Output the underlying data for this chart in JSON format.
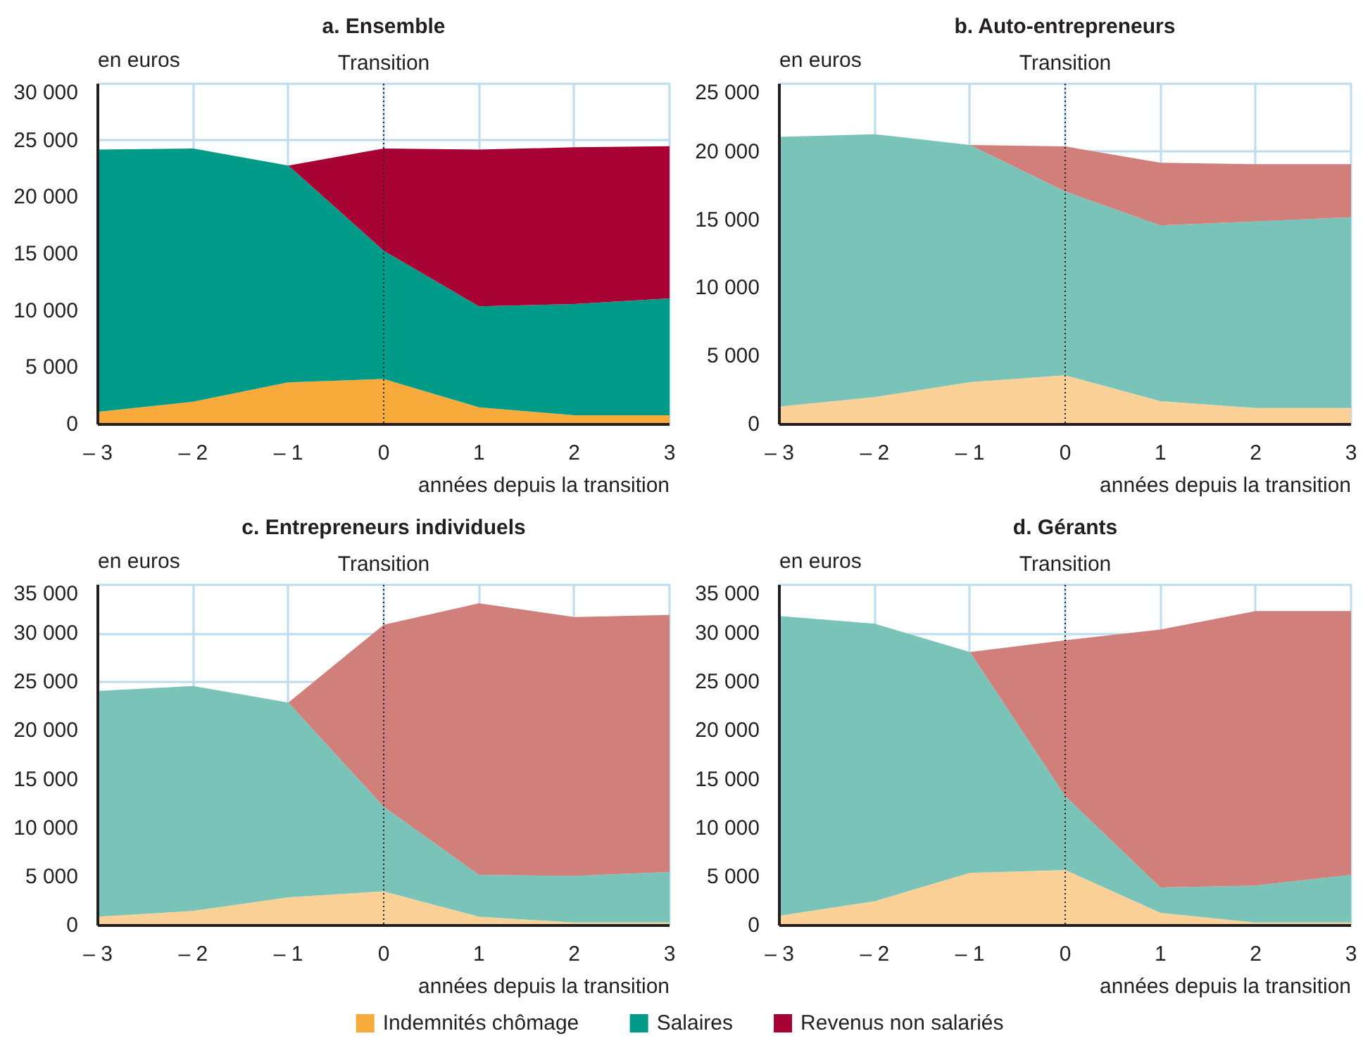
{
  "chart_data": [
    {
      "type": "area",
      "title": "a. Ensemble",
      "ylabel": "en euros",
      "xlabel": "années depuis la transition",
      "x": [
        -3,
        -2,
        -1,
        0,
        1,
        2,
        3
      ],
      "stacked": true,
      "series": [
        {
          "name": "Indemnités chômage",
          "color": "#f8ab3b",
          "values": [
            1100,
            2000,
            3700,
            4000,
            1500,
            800,
            800
          ]
        },
        {
          "name": "Salaires",
          "color": "#009a89",
          "values": [
            23100,
            22300,
            19100,
            11300,
            8900,
            9800,
            10300
          ]
        },
        {
          "name": "Revenus non salariés",
          "color": "#a70233",
          "values": [
            null,
            null,
            0,
            9000,
            13800,
            13800,
            13400
          ]
        }
      ],
      "xlim": [
        -3,
        3
      ],
      "ylim": [
        0,
        30000
      ],
      "xticks": [
        {
          "value": -3,
          "label": "– 3"
        },
        {
          "value": -2,
          "label": "– 2"
        },
        {
          "value": -1,
          "label": "– 1"
        },
        0,
        1,
        2,
        3
      ],
      "yticks": [
        0,
        {
          "value": 5000,
          "label": "5 000"
        },
        {
          "value": 10000,
          "label": "10 000"
        },
        {
          "value": 15000,
          "label": "15 000"
        },
        {
          "value": 20000,
          "label": "20 000"
        },
        {
          "value": 25000,
          "label": "25 000"
        },
        {
          "value": 30000,
          "label": "30 000"
        }
      ],
      "ref_lines": [
        {
          "axis": "x",
          "value": 0,
          "label": "Transition",
          "line_style": "dotted",
          "color": "#231f20"
        }
      ],
      "grid": true,
      "legend": "bottom"
    },
    {
      "type": "area",
      "title": "b. Auto-entrepreneurs",
      "ylabel": "en euros",
      "xlabel": "années depuis la transition",
      "x": [
        -3,
        -2,
        -1,
        0,
        1,
        2,
        3
      ],
      "stacked": true,
      "series": [
        {
          "color": "#fcd197",
          "values": [
            1300,
            2000,
            3100,
            3600,
            1700,
            1200,
            1200
          ]
        },
        {
          "color": "#79c3b8",
          "values": [
            19800,
            19300,
            17400,
            13500,
            12900,
            13700,
            14000
          ]
        },
        {
          "color": "#d07f7b",
          "values": [
            null,
            null,
            0,
            3300,
            4600,
            4200,
            3900
          ]
        }
      ],
      "xlim": [
        -3,
        3
      ],
      "ylim": [
        0,
        25000
      ],
      "xticks": [
        {
          "value": -3,
          "label": "– 3"
        },
        {
          "value": -2,
          "label": "– 2"
        },
        {
          "value": -1,
          "label": "– 1"
        },
        0,
        1,
        2,
        3
      ],
      "yticks": [
        0,
        {
          "value": 5000,
          "label": "5 000"
        },
        {
          "value": 10000,
          "label": "10 000"
        },
        {
          "value": 15000,
          "label": "15 000"
        },
        {
          "value": 20000,
          "label": "20 000"
        },
        {
          "value": 25000,
          "label": "25 000"
        }
      ],
      "ref_lines": [
        {
          "axis": "x",
          "value": 0,
          "label": "Transition",
          "line_style": "dotted",
          "color": "#231f20"
        }
      ],
      "grid": true
    },
    {
      "type": "area",
      "title": "c. Entrepreneurs individuels",
      "ylabel": "en euros",
      "xlabel": "années depuis la transition",
      "x": [
        -3,
        -2,
        -1,
        0,
        1,
        2,
        3
      ],
      "stacked": true,
      "series": [
        {
          "color": "#fcd197",
          "values": [
            900,
            1500,
            2900,
            3500,
            900,
            300,
            300
          ]
        },
        {
          "color": "#79c3b8",
          "values": [
            23200,
            23100,
            20000,
            8700,
            4300,
            4800,
            5200
          ]
        },
        {
          "color": "#d07f7b",
          "values": [
            null,
            null,
            0,
            18700,
            27900,
            26600,
            26400
          ]
        }
      ],
      "xlim": [
        -3,
        3
      ],
      "ylim": [
        0,
        35000
      ],
      "xticks": [
        {
          "value": -3,
          "label": "– 3"
        },
        {
          "value": -2,
          "label": "– 2"
        },
        {
          "value": -1,
          "label": "– 1"
        },
        0,
        1,
        2,
        3
      ],
      "yticks": [
        0,
        {
          "value": 5000,
          "label": "5 000"
        },
        {
          "value": 10000,
          "label": "10 000"
        },
        {
          "value": 15000,
          "label": "15 000"
        },
        {
          "value": 20000,
          "label": "20 000"
        },
        {
          "value": 25000,
          "label": "25 000"
        },
        {
          "value": 30000,
          "label": "30 000"
        },
        {
          "value": 35000,
          "label": "35 000"
        }
      ],
      "ref_lines": [
        {
          "axis": "x",
          "value": 0,
          "label": "Transition",
          "line_style": "dotted",
          "color": "#231f20"
        }
      ],
      "grid": true
    },
    {
      "type": "area",
      "title": "d. Gérants",
      "ylabel": "en euros",
      "xlabel": "années depuis la transition",
      "x": [
        -3,
        -2,
        -1,
        0,
        1,
        2,
        3
      ],
      "stacked": true,
      "series": [
        {
          "color": "#fcd197",
          "values": [
            1000,
            2500,
            5400,
            5700,
            1300,
            300,
            300
          ]
        },
        {
          "color": "#79c3b8",
          "values": [
            30800,
            28500,
            22700,
            7600,
            2600,
            3800,
            4900
          ]
        },
        {
          "color": "#d07f7b",
          "values": [
            null,
            null,
            0,
            16000,
            26500,
            28200,
            27100
          ]
        }
      ],
      "xlim": [
        -3,
        3
      ],
      "ylim": [
        0,
        35000
      ],
      "xticks": [
        {
          "value": -3,
          "label": "– 3"
        },
        {
          "value": -2,
          "label": "– 2"
        },
        {
          "value": -1,
          "label": "– 1"
        },
        0,
        1,
        2,
        3
      ],
      "yticks": [
        0,
        {
          "value": 5000,
          "label": "5 000"
        },
        {
          "value": 10000,
          "label": "10 000"
        },
        {
          "value": 15000,
          "label": "15 000"
        },
        {
          "value": 20000,
          "label": "20 000"
        },
        {
          "value": 25000,
          "label": "25 000"
        },
        {
          "value": 30000,
          "label": "30 000"
        },
        {
          "value": 35000,
          "label": "35 000"
        }
      ],
      "ref_lines": [
        {
          "axis": "x",
          "value": 0,
          "label": "Transition",
          "line_style": "dotted",
          "color": "#231f20"
        }
      ],
      "grid": true
    }
  ]
}
